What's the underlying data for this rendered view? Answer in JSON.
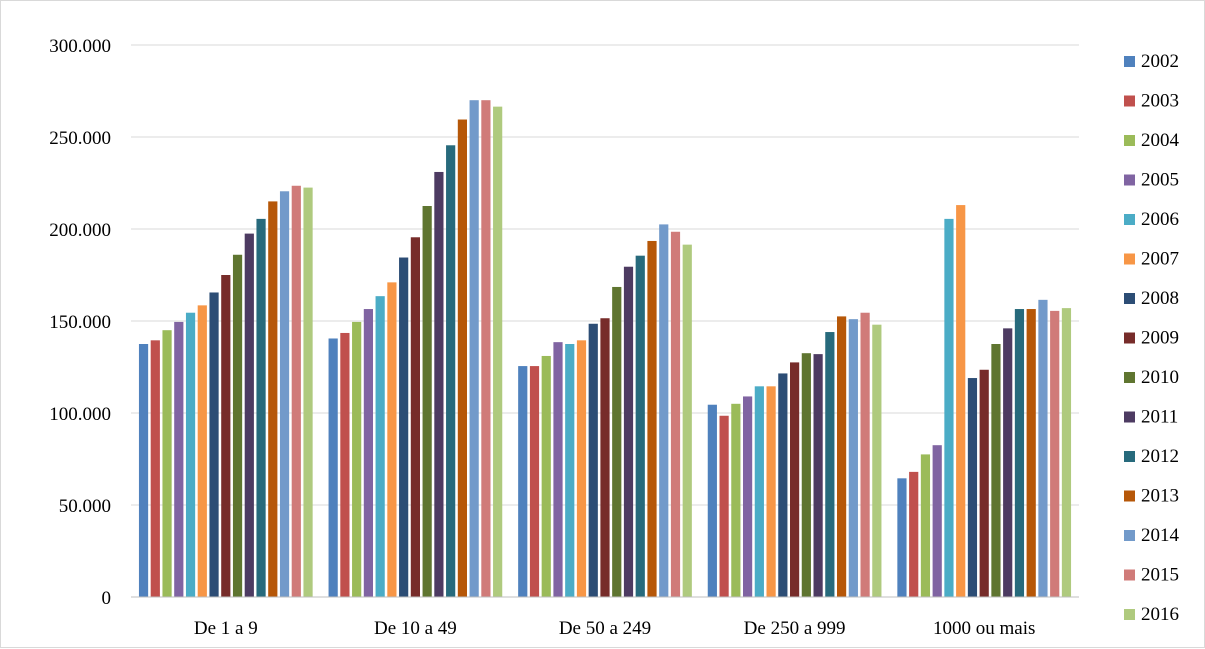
{
  "chart_data": {
    "type": "bar",
    "categories": [
      "De 1 a 9",
      "De 10 a 49",
      "De 50 a 249",
      "De 250 a 999",
      "1000 ou mais"
    ],
    "ylim": [
      0,
      300000
    ],
    "yticks": [
      {
        "value": 0,
        "label": "0"
      },
      {
        "value": 50000,
        "label": "50.000"
      },
      {
        "value": 100000,
        "label": "100.000"
      },
      {
        "value": 150000,
        "label": "150.000"
      },
      {
        "value": 200000,
        "label": "200.000"
      },
      {
        "value": 250000,
        "label": "250.000"
      },
      {
        "value": 300000,
        "label": "300.000"
      }
    ],
    "grid": true,
    "legend_position": "right",
    "series": [
      {
        "name": "2002",
        "color": "#4f81bd",
        "values": [
          137500,
          140500,
          125500,
          104500,
          64500
        ]
      },
      {
        "name": "2003",
        "color": "#c0504d",
        "values": [
          139500,
          143500,
          125500,
          98500,
          68000
        ]
      },
      {
        "name": "2004",
        "color": "#9bbb59",
        "values": [
          145000,
          149500,
          131000,
          105000,
          77500
        ]
      },
      {
        "name": "2005",
        "color": "#8064a2",
        "values": [
          149500,
          156500,
          138500,
          109000,
          82500
        ]
      },
      {
        "name": "2006",
        "color": "#4bacc6",
        "values": [
          154500,
          163500,
          137500,
          114500,
          205500
        ]
      },
      {
        "name": "2007",
        "color": "#f79646",
        "values": [
          158500,
          171000,
          139500,
          114500,
          213000
        ]
      },
      {
        "name": "2008",
        "color": "#2c4d75",
        "values": [
          165500,
          184500,
          148500,
          121500,
          119000
        ]
      },
      {
        "name": "2009",
        "color": "#772c2a",
        "values": [
          175000,
          195500,
          151500,
          127500,
          123500
        ]
      },
      {
        "name": "2010",
        "color": "#5f7530",
        "values": [
          186000,
          212500,
          168500,
          132500,
          137500
        ]
      },
      {
        "name": "2011",
        "color": "#4d3b62",
        "values": [
          197500,
          231000,
          179500,
          132000,
          146000
        ]
      },
      {
        "name": "2012",
        "color": "#276a7c",
        "values": [
          205500,
          245500,
          185500,
          144000,
          156500
        ]
      },
      {
        "name": "2013",
        "color": "#b65708",
        "values": [
          215000,
          259500,
          193500,
          152500,
          156500
        ]
      },
      {
        "name": "2014",
        "color": "#729aca",
        "values": [
          220500,
          270000,
          202500,
          151000,
          161500
        ]
      },
      {
        "name": "2015",
        "color": "#d07b79",
        "values": [
          223500,
          270000,
          198500,
          154500,
          155500
        ]
      },
      {
        "name": "2016",
        "color": "#afca7e",
        "values": [
          222500,
          266500,
          191500,
          148000,
          157000
        ]
      }
    ]
  }
}
